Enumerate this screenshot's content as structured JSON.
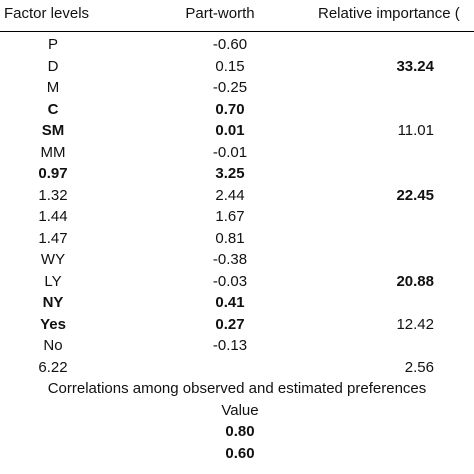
{
  "table": {
    "headers": {
      "factor_levels": "Factor levels",
      "part_worth": "Part-worth",
      "relative_importance": "Relative importance ("
    },
    "rows": [
      {
        "level": "P",
        "level_bold": false,
        "part_worth": "-0.60",
        "pw_bold": false,
        "relative": "",
        "rel_bold": false
      },
      {
        "level": "D",
        "level_bold": false,
        "part_worth": "0.15",
        "pw_bold": false,
        "relative": "33.24",
        "rel_bold": true
      },
      {
        "level": "M",
        "level_bold": false,
        "part_worth": "-0.25",
        "pw_bold": false,
        "relative": "",
        "rel_bold": false
      },
      {
        "level": "C",
        "level_bold": true,
        "part_worth": "0.70",
        "pw_bold": true,
        "relative": "",
        "rel_bold": false
      },
      {
        "level": "SM",
        "level_bold": true,
        "part_worth": "0.01",
        "pw_bold": true,
        "relative": "11.01",
        "rel_bold": false
      },
      {
        "level": "MM",
        "level_bold": false,
        "part_worth": "-0.01",
        "pw_bold": false,
        "relative": "",
        "rel_bold": false
      },
      {
        "level": "0.97",
        "level_bold": true,
        "part_worth": "3.25",
        "pw_bold": true,
        "relative": "",
        "rel_bold": false
      },
      {
        "level": "1.32",
        "level_bold": false,
        "part_worth": "2.44",
        "pw_bold": false,
        "relative": "22.45",
        "rel_bold": true
      },
      {
        "level": "1.44",
        "level_bold": false,
        "part_worth": "1.67",
        "pw_bold": false,
        "relative": "",
        "rel_bold": false
      },
      {
        "level": "1.47",
        "level_bold": false,
        "part_worth": "0.81",
        "pw_bold": false,
        "relative": "",
        "rel_bold": false
      },
      {
        "level": "WY",
        "level_bold": false,
        "part_worth": "-0.38",
        "pw_bold": false,
        "relative": "",
        "rel_bold": false
      },
      {
        "level": "LY",
        "level_bold": false,
        "part_worth": "-0.03",
        "pw_bold": false,
        "relative": "20.88",
        "rel_bold": true
      },
      {
        "level": "NY",
        "level_bold": true,
        "part_worth": "0.41",
        "pw_bold": true,
        "relative": "",
        "rel_bold": false
      },
      {
        "level": "Yes",
        "level_bold": true,
        "part_worth": "0.27",
        "pw_bold": true,
        "relative": "12.42",
        "rel_bold": false
      },
      {
        "level": "No",
        "level_bold": false,
        "part_worth": "-0.13",
        "pw_bold": false,
        "relative": "",
        "rel_bold": false
      },
      {
        "level": "6.22",
        "level_bold": false,
        "part_worth": "",
        "pw_bold": false,
        "relative": "2.56",
        "rel_bold": false
      }
    ]
  },
  "correlations": {
    "title": "Correlations among observed and estimated preferences",
    "value_header": "Value",
    "values": [
      "0.80",
      "0.60"
    ]
  }
}
